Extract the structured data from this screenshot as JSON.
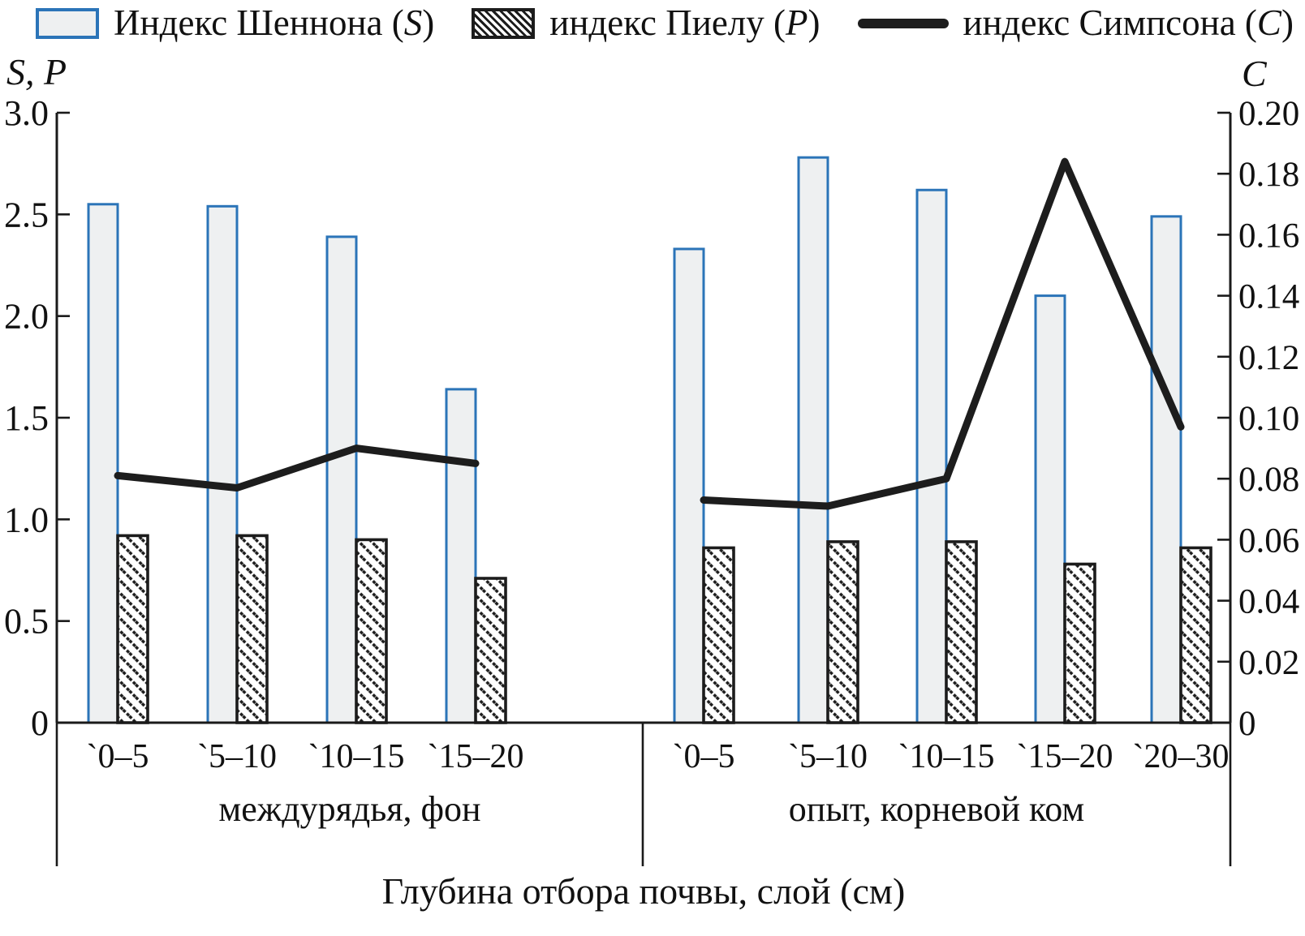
{
  "legend": {
    "items": [
      {
        "prefix": "Индекс Шеннона (",
        "symbol": "S",
        "suffix": ")",
        "swatch": "shannon-bar-swatch"
      },
      {
        "prefix": "индекс Пиелу (",
        "symbol": "P",
        "suffix": ")",
        "swatch": "pielou-bar-swatch"
      },
      {
        "prefix": "индекс Симпсона (",
        "symbol": "C",
        "suffix": ")",
        "swatch": "simpson-line-swatch"
      }
    ]
  },
  "chart_data": {
    "type": "bar+line",
    "title": "",
    "xlabel": "Глубина отбора почвы, слой (см)",
    "legend_position": "top",
    "grid": false,
    "left_axis": {
      "label": "S, P",
      "range": [
        0,
        3.0
      ],
      "tick_labels": [
        "3.0",
        "2.5",
        "2.0",
        "1.5",
        "1.0",
        "0.5",
        "0"
      ],
      "tick_values": [
        3.0,
        2.5,
        2.0,
        1.5,
        1.0,
        0.5,
        0
      ]
    },
    "right_axis": {
      "label": "C",
      "range": [
        0,
        0.2
      ],
      "tick_labels": [
        "0.20",
        "0.18",
        "0.16",
        "0.14",
        "0.12",
        "0.10",
        "0.08",
        "0.06",
        "0.04",
        "0.02",
        "0"
      ],
      "tick_values": [
        0.2,
        0.18,
        0.16,
        0.14,
        0.12,
        0.1,
        0.08,
        0.06,
        0.04,
        0.02,
        0
      ]
    },
    "series_meta": [
      {
        "key": "shannon",
        "name": "Индекс Шеннона (S)",
        "type": "bar",
        "axis": "left"
      },
      {
        "key": "pielou",
        "name": "индекс Пиелу (P)",
        "type": "bar",
        "axis": "left"
      },
      {
        "key": "simpson",
        "name": "индекс Симпсона (C)",
        "type": "line",
        "axis": "right"
      }
    ],
    "groups": [
      {
        "label": "междурядья, фон",
        "categories": [
          "`0–5",
          "`5–10",
          "`10–15",
          "`15–20"
        ],
        "series": {
          "shannon": [
            2.55,
            2.54,
            2.39,
            1.64
          ],
          "pielou": [
            0.92,
            0.92,
            0.9,
            0.71
          ],
          "simpson": [
            0.081,
            0.077,
            0.09,
            0.085
          ]
        }
      },
      {
        "label": "опыт, корневой ком",
        "categories": [
          "`0–5",
          "`5–10",
          "`10–15",
          "`15–20",
          "`20–30"
        ],
        "series": {
          "shannon": [
            2.33,
            2.78,
            2.62,
            2.1,
            2.49
          ],
          "pielou": [
            0.86,
            0.89,
            0.89,
            0.78,
            0.86
          ],
          "simpson": [
            0.073,
            0.071,
            0.08,
            0.184,
            0.097
          ]
        }
      }
    ],
    "colors": {
      "shannon_border": "#2b74b8",
      "shannon_fill": "#eef0f1",
      "pielou_border": "#1c1c1c",
      "pielou_fill": "#ffffff",
      "simpson_line": "#1d1d1d",
      "axis": "#1a1a1a",
      "text": "#111111"
    }
  }
}
